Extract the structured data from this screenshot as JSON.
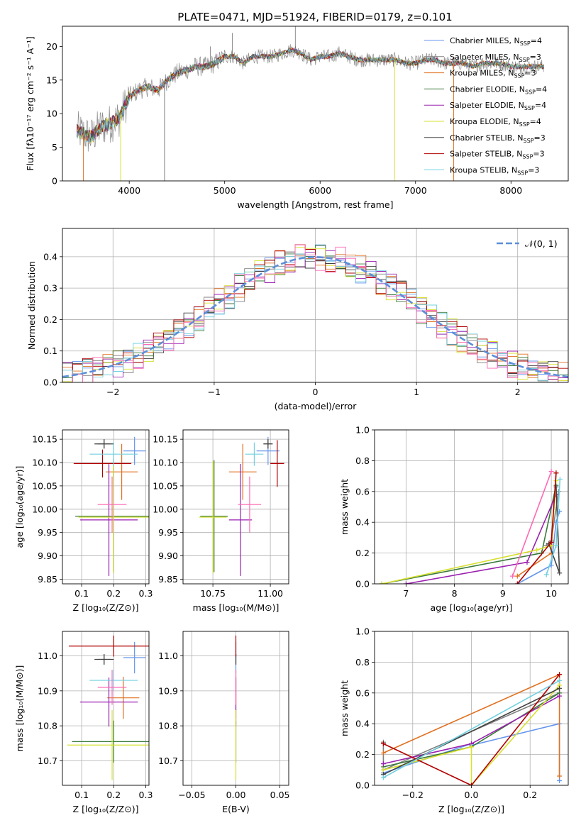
{
  "title": "PLATE=0471, MJD=51924, FIBERID=0179, z=0.101",
  "colors": {
    "Chabrier MILES": "#6495ED",
    "Salpeter MILES": "#808080",
    "Kroupa MILES": "#E07020",
    "Chabrier ELODIE": "#3A7A3A",
    "Salpeter ELODIE": "#9A20B0",
    "Kroupa ELODIE": "#D8E030",
    "Chabrier STELIB": "#404040",
    "Salpeter STELIB": "#B00000",
    "Kroupa STELIB": "#70D0E0",
    "pink": "#FF69B4",
    "model_curve": "#5B8FD9"
  },
  "chart_data": [
    {
      "id": "spectrum",
      "type": "line",
      "title": "PLATE=0471, MJD=51924, FIBERID=0179, z=0.101",
      "xlabel": "wavelength [Angstrom, rest frame]",
      "ylabel": "Flux [fλ10⁻¹⁷ erg cm⁻² s⁻¹ A⁻¹]",
      "xlim": [
        3300,
        8600
      ],
      "ylim": [
        0,
        23
      ],
      "xticks": [
        "4000",
        "5000",
        "6000",
        "7000",
        "8000"
      ],
      "yticks": [
        "0",
        "5",
        "10",
        "15",
        "20"
      ],
      "legend_position": "top-right",
      "legend": [
        {
          "name": "Chabrier MILES, N_SSP=4",
          "color": "#6495ED"
        },
        {
          "name": "Salpeter MILES, N_SSP=3",
          "color": "#808080"
        },
        {
          "name": "Kroupa MILES, N_SSP=3",
          "color": "#E07020"
        },
        {
          "name": "Chabrier ELODIE, N_SSP=4",
          "color": "#3A7A3A"
        },
        {
          "name": "Salpeter ELODIE, N_SSP=4",
          "color": "#9A20B0"
        },
        {
          "name": "Kroupa ELODIE, N_SSP=4",
          "color": "#D8E030"
        },
        {
          "name": "Chabrier STELIB, N_SSP=3",
          "color": "#404040"
        },
        {
          "name": "Salpeter STELIB, N_SSP=3",
          "color": "#B00000"
        },
        {
          "name": "Kroupa STELIB, N_SSP=3",
          "color": "#70D0E0"
        }
      ],
      "continuum": [
        [
          3450,
          7.5
        ],
        [
          3600,
          6.5
        ],
        [
          3700,
          8
        ],
        [
          3800,
          8.5
        ],
        [
          3900,
          9.5
        ],
        [
          4000,
          12.5
        ],
        [
          4100,
          13.5
        ],
        [
          4200,
          14
        ],
        [
          4300,
          13.5
        ],
        [
          4400,
          15
        ],
        [
          4500,
          16
        ],
        [
          4600,
          16.5
        ],
        [
          4700,
          17
        ],
        [
          4800,
          17
        ],
        [
          4900,
          17.5
        ],
        [
          5000,
          18.5
        ],
        [
          5100,
          18.5
        ],
        [
          5200,
          17.5
        ],
        [
          5300,
          18.5
        ],
        [
          5400,
          18.5
        ],
        [
          5500,
          18.5
        ],
        [
          5600,
          19
        ],
        [
          5700,
          19.5
        ],
        [
          5800,
          19
        ],
        [
          5900,
          18
        ],
        [
          6000,
          18.5
        ],
        [
          6100,
          18.5
        ],
        [
          6200,
          19
        ],
        [
          6300,
          18.5
        ],
        [
          6400,
          18
        ],
        [
          6500,
          18
        ],
        [
          6600,
          18
        ],
        [
          6700,
          18
        ],
        [
          6800,
          18
        ],
        [
          6900,
          17.5
        ],
        [
          7000,
          17.5
        ],
        [
          7100,
          18
        ],
        [
          7200,
          18
        ],
        [
          7300,
          17.5
        ],
        [
          7400,
          17.5
        ],
        [
          7500,
          17.5
        ],
        [
          7600,
          17
        ],
        [
          7700,
          17.5
        ],
        [
          7800,
          17.5
        ],
        [
          7900,
          17.5
        ],
        [
          8000,
          17
        ],
        [
          8100,
          17
        ],
        [
          8200,
          17
        ],
        [
          8300,
          17
        ],
        [
          8350,
          17
        ]
      ],
      "vertical_dropouts": [
        {
          "x": 3520,
          "color": "#E07020"
        },
        {
          "x": 3910,
          "color": "#D8E030"
        },
        {
          "x": 4370,
          "color": "#808080"
        },
        {
          "x": 6780,
          "color": "#D8E030"
        },
        {
          "x": 7400,
          "color": "#E07020"
        }
      ]
    },
    {
      "id": "residuals",
      "type": "histogram",
      "xlabel": "(data-model)/error",
      "ylabel": "Normed distribution",
      "xlim": [
        -2.5,
        2.5
      ],
      "ylim": [
        0,
        0.49
      ],
      "xticks": [
        "−2",
        "−1",
        "0",
        "1",
        "2"
      ],
      "yticks": [
        "0.0",
        "0.1",
        "0.2",
        "0.3",
        "0.4"
      ],
      "grid": true,
      "legend_position": "top-right",
      "legend": [
        {
          "name": "𝒩(0, 1)",
          "color": "#5B8FD9"
        }
      ],
      "bin_width": 0.1,
      "reference_curve": "normal(0,1)"
    },
    {
      "id": "age-vs-Z",
      "type": "errorbar",
      "xlabel": "Z [log₁₀(Z/Z⊙)]",
      "ylabel": "age  [log₁₀(age/yr)]",
      "xlim": [
        0.04,
        0.31
      ],
      "ylim": [
        9.84,
        10.17
      ],
      "xticks": [
        "0.1",
        "0.2",
        "0.3"
      ],
      "yticks": [
        "9.85",
        "9.90",
        "9.95",
        "10.00",
        "10.05",
        "10.10",
        "10.15"
      ],
      "grid": true,
      "points": [
        {
          "color": "#6495ED",
          "x": 0.265,
          "xerr": 0.035,
          "y": 10.125,
          "yerr": 0.03
        },
        {
          "color": "#808080",
          "x": 0.17,
          "xerr": 0.02,
          "y": 10.14,
          "yerr": 0.01
        },
        {
          "color": "#E07020",
          "x": 0.225,
          "xerr": 0.05,
          "y": 10.08,
          "yerr": 0.06
        },
        {
          "color": "#3A7A3A",
          "x": 0.2,
          "xerr": 0.12,
          "y": 9.985,
          "yerr": 0.12
        },
        {
          "color": "#9A20B0",
          "x": 0.185,
          "xerr": 0.09,
          "y": 9.977,
          "yerr": 0.12
        },
        {
          "color": "#D8E030",
          "x": 0.2,
          "xerr": 0.11,
          "y": 9.983,
          "yerr": 0.12
        },
        {
          "color": "#404040",
          "x": 0.17,
          "xerr": 0.03,
          "y": 10.14,
          "yerr": 0.01
        },
        {
          "color": "#B00000",
          "x": 0.165,
          "xerr": 0.09,
          "y": 10.098,
          "yerr": 0.03
        },
        {
          "color": "#70D0E0",
          "x": 0.2,
          "xerr": 0.075,
          "y": 10.118,
          "yerr": 0.025
        },
        {
          "color": "#FF69B4",
          "x": 0.195,
          "xerr": 0.045,
          "y": 10.01,
          "yerr": 0.06
        }
      ]
    },
    {
      "id": "age-vs-mass",
      "type": "errorbar",
      "xlabel": "mass [log₁₀(M/M⊙)]",
      "ylabel": "",
      "xlim": [
        10.62,
        11.08
      ],
      "ylim": [
        9.84,
        10.17
      ],
      "xticks": [
        "10.75",
        "11.00"
      ],
      "yticks": [
        "9.85",
        "9.90",
        "9.95",
        "10.00",
        "10.05",
        "10.10",
        "10.15"
      ],
      "grid": true,
      "points": [
        {
          "color": "#6495ED",
          "x": 10.99,
          "xerr": 0.05,
          "y": 10.125,
          "yerr": 0.03
        },
        {
          "color": "#808080",
          "x": 10.99,
          "xerr": 0.02,
          "y": 10.14,
          "yerr": 0.01
        },
        {
          "color": "#E07020",
          "x": 10.88,
          "xerr": 0.06,
          "y": 10.08,
          "yerr": 0.06
        },
        {
          "color": "#3A7A3A",
          "x": 10.755,
          "xerr": 0.06,
          "y": 9.985,
          "yerr": 0.12
        },
        {
          "color": "#9A20B0",
          "x": 10.87,
          "xerr": 0.05,
          "y": 9.977,
          "yerr": 0.12
        },
        {
          "color": "#D8E030",
          "x": 10.75,
          "xerr": 0.06,
          "y": 9.983,
          "yerr": 0.12
        },
        {
          "color": "#404040",
          "x": 10.99,
          "xerr": 0.02,
          "y": 10.14,
          "yerr": 0.01
        },
        {
          "color": "#B00000",
          "x": 11.03,
          "xerr": 0.03,
          "y": 10.098,
          "yerr": 0.05
        },
        {
          "color": "#70D0E0",
          "x": 10.93,
          "xerr": 0.04,
          "y": 10.118,
          "yerr": 0.025
        },
        {
          "color": "#FF69B4",
          "x": 10.91,
          "xerr": 0.05,
          "y": 10.01,
          "yerr": 0.06
        }
      ]
    },
    {
      "id": "weight-vs-age",
      "type": "line",
      "xlabel": "age  [log₁₀(age/yr)]",
      "ylabel": "mass weight",
      "xlim": [
        6.35,
        10.35
      ],
      "ylim": [
        0,
        1.0
      ],
      "xticks": [
        "7",
        "8",
        "9",
        "10"
      ],
      "yticks": [
        "0.0",
        "0.2",
        "0.4",
        "0.6",
        "0.8",
        "1.0"
      ],
      "grid": true,
      "series": [
        {
          "color": "#6495ED",
          "points": [
            [
              9.3,
              0.0
            ],
            [
              10.0,
              0.12
            ],
            [
              10.1,
              0.4
            ],
            [
              10.17,
              0.47
            ]
          ]
        },
        {
          "color": "#808080",
          "points": [
            [
              9.9,
              0.25
            ],
            [
              10.0,
              0.28
            ],
            [
              10.15,
              0.6
            ]
          ]
        },
        {
          "color": "#E07020",
          "points": [
            [
              9.3,
              0.05
            ],
            [
              10.0,
              0.2
            ],
            [
              10.1,
              0.72
            ]
          ]
        },
        {
          "color": "#3A7A3A",
          "points": [
            [
              6.5,
              0.0
            ],
            [
              9.8,
              0.2
            ],
            [
              10.1,
              0.64
            ]
          ]
        },
        {
          "color": "#9A20B0",
          "points": [
            [
              7.0,
              0.0
            ],
            [
              9.5,
              0.14
            ],
            [
              10.1,
              0.58
            ]
          ]
        },
        {
          "color": "#D8E030",
          "points": [
            [
              6.5,
              0.0
            ],
            [
              9.7,
              0.22
            ],
            [
              10.0,
              0.25
            ],
            [
              10.1,
              0.67
            ]
          ]
        },
        {
          "color": "#404040",
          "points": [
            [
              9.95,
              0.26
            ],
            [
              10.17,
              0.07
            ],
            [
              10.1,
              0.63
            ]
          ]
        },
        {
          "color": "#B00000",
          "points": [
            [
              9.3,
              0.0
            ],
            [
              10.0,
              0.27
            ],
            [
              10.1,
              0.72
            ]
          ]
        },
        {
          "color": "#70D0E0",
          "points": [
            [
              9.9,
              0.06
            ],
            [
              10.1,
              0.25
            ],
            [
              10.18,
              0.68
            ]
          ]
        },
        {
          "color": "#FF69B4",
          "points": [
            [
              9.2,
              0.05
            ],
            [
              10.0,
              0.73
            ]
          ]
        }
      ]
    },
    {
      "id": "mass-vs-Z",
      "type": "errorbar",
      "xlabel": "Z [log₁₀(Z/Z⊙)]",
      "ylabel": "mass [log₁₀(M/M⊙)]",
      "xlim": [
        0.04,
        0.31
      ],
      "ylim": [
        10.63,
        11.07
      ],
      "xticks": [
        "0.1",
        "0.2",
        "0.3"
      ],
      "yticks": [
        "10.7",
        "10.8",
        "10.9",
        "11.0"
      ],
      "grid": true,
      "points": [
        {
          "color": "#6495ED",
          "x": 0.265,
          "xerr": 0.035,
          "y": 10.995,
          "yerr": 0.045
        },
        {
          "color": "#808080",
          "x": 0.17,
          "xerr": 0.02,
          "y": 10.99,
          "yerr": 0.015
        },
        {
          "color": "#E07020",
          "x": 0.23,
          "xerr": 0.05,
          "y": 10.88,
          "yerr": 0.06
        },
        {
          "color": "#3A7A3A",
          "x": 0.2,
          "xerr": 0.13,
          "y": 10.755,
          "yerr": 0.06
        },
        {
          "color": "#9A20B0",
          "x": 0.185,
          "xerr": 0.09,
          "y": 10.868,
          "yerr": 0.07
        },
        {
          "color": "#D8E030",
          "x": 0.195,
          "xerr": 0.14,
          "y": 10.745,
          "yerr": 0.1
        },
        {
          "color": "#404040",
          "x": 0.17,
          "xerr": 0.03,
          "y": 10.99,
          "yerr": 0.015
        },
        {
          "color": "#B00000",
          "x": 0.2,
          "xerr": 0.14,
          "y": 11.028,
          "yerr": 0.03
        },
        {
          "color": "#70D0E0",
          "x": 0.2,
          "xerr": 0.075,
          "y": 10.93,
          "yerr": 0.03
        },
        {
          "color": "#FF69B4",
          "x": 0.195,
          "xerr": 0.045,
          "y": 10.91,
          "yerr": 0.05
        }
      ]
    },
    {
      "id": "mass-vs-EBV",
      "type": "errorbar",
      "xlabel": "E(B-V)",
      "ylabel": "",
      "xlim": [
        -0.06,
        0.06
      ],
      "ylim": [
        10.63,
        11.07
      ],
      "xticks": [
        "−0.05",
        "0.00",
        "0.05"
      ],
      "yticks": [
        "10.7",
        "10.8",
        "10.9",
        "11.0"
      ],
      "grid": true,
      "points": [
        {
          "color": "#6495ED",
          "x": 0.0,
          "xerr": 0,
          "y": 10.995,
          "yerr": 0.045
        },
        {
          "color": "#808080",
          "x": 0.0,
          "xerr": 0,
          "y": 10.99,
          "yerr": 0.015
        },
        {
          "color": "#E07020",
          "x": 0.0,
          "xerr": 0,
          "y": 10.88,
          "yerr": 0.06
        },
        {
          "color": "#3A7A3A",
          "x": 0.0,
          "xerr": 0,
          "y": 10.755,
          "yerr": 0.06
        },
        {
          "color": "#9A20B0",
          "x": 0.0,
          "xerr": 0,
          "y": 10.868,
          "yerr": 0.07
        },
        {
          "color": "#D8E030",
          "x": 0.0,
          "xerr": 0,
          "y": 10.745,
          "yerr": 0.1
        },
        {
          "color": "#404040",
          "x": 0.0,
          "xerr": 0,
          "y": 10.99,
          "yerr": 0.015
        },
        {
          "color": "#B00000",
          "x": 0.0,
          "xerr": 0,
          "y": 11.028,
          "yerr": 0.03
        },
        {
          "color": "#70D0E0",
          "x": 0.0,
          "xerr": 0,
          "y": 10.93,
          "yerr": 0.03
        },
        {
          "color": "#FF69B4",
          "x": 0.0,
          "xerr": 0,
          "y": 10.91,
          "yerr": 0.05
        }
      ]
    },
    {
      "id": "weight-vs-Z",
      "type": "line",
      "xlabel": "Z [log₁₀(Z/Z⊙)]",
      "ylabel": "mass weight",
      "xlim": [
        -0.33,
        0.33
      ],
      "ylim": [
        0,
        1.0
      ],
      "xticks": [
        "−0.2",
        "0.0",
        "0.2"
      ],
      "yticks": [
        "0.0",
        "0.2",
        "0.4",
        "0.6",
        "0.8",
        "1.0"
      ],
      "grid": true,
      "series": [
        {
          "color": "#6495ED",
          "points": [
            [
              -0.3,
              0.08
            ],
            [
              0.0,
              0.27
            ],
            [
              0.0,
              0.26
            ],
            [
              0.3,
              0.4
            ],
            [
              0.3,
              0.03
            ]
          ]
        },
        {
          "color": "#808080",
          "points": [
            [
              -0.3,
              0.28
            ],
            [
              -0.3,
              0.1
            ],
            [
              0.3,
              0.6
            ]
          ]
        },
        {
          "color": "#E07020",
          "points": [
            [
              -0.3,
              0.21
            ],
            [
              0.3,
              0.72
            ],
            [
              0.3,
              0.06
            ]
          ]
        },
        {
          "color": "#3A7A3A",
          "points": [
            [
              -0.3,
              0.12
            ],
            [
              0.0,
              0.25
            ],
            [
              0.3,
              0.6
            ]
          ]
        },
        {
          "color": "#9A20B0",
          "points": [
            [
              -0.3,
              0.14
            ],
            [
              0.0,
              0.27
            ],
            [
              0.3,
              0.58
            ]
          ]
        },
        {
          "color": "#D8E030",
          "points": [
            [
              -0.3,
              0.1
            ],
            [
              0.0,
              0.25
            ],
            [
              0.0,
              0.0
            ],
            [
              0.3,
              0.65
            ]
          ]
        },
        {
          "color": "#404040",
          "points": [
            [
              -0.3,
              0.07
            ],
            [
              0.3,
              0.63
            ]
          ]
        },
        {
          "color": "#B00000",
          "points": [
            [
              -0.3,
              0.27
            ],
            [
              0.0,
              0.0
            ],
            [
              0.3,
              0.72
            ]
          ]
        },
        {
          "color": "#70D0E0",
          "points": [
            [
              -0.3,
              0.05
            ],
            [
              0.3,
              0.68
            ]
          ]
        }
      ]
    }
  ]
}
